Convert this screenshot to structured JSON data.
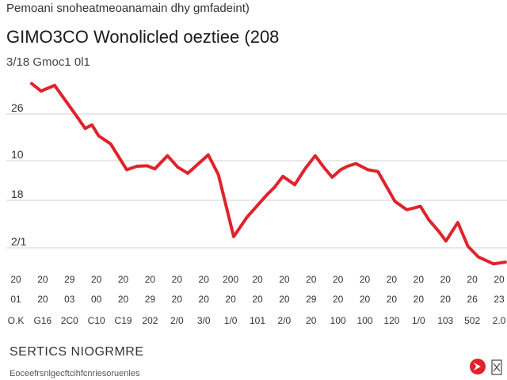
{
  "header": {
    "supertitle": "Pemoani snoheatmeoanamain dhy gmfadeint)",
    "title": "GIMO3CO Wonolicled oeztiee  (208",
    "subtitle": "3/18  Gmoc1 0l1"
  },
  "chart_data": {
    "type": "line",
    "title": "GIMO3CO Wonolicled oeztiee  (208",
    "xlabel": "",
    "ylabel": "",
    "y_tick_labels": [
      "26",
      "10",
      "18",
      "2/1"
    ],
    "x_tick_labels": [
      {
        "top": "20",
        "mid": "01",
        "bot": "O.K"
      },
      {
        "top": "20",
        "mid": "20",
        "bot": "G16"
      },
      {
        "top": "29",
        "mid": "03",
        "bot": "2C0"
      },
      {
        "top": "20",
        "mid": "00",
        "bot": "C10"
      },
      {
        "top": "20",
        "mid": "20",
        "bot": "C19"
      },
      {
        "top": "20",
        "mid": "29",
        "bot": "202"
      },
      {
        "top": "20",
        "mid": "20",
        "bot": "2/0"
      },
      {
        "top": "20",
        "mid": "20",
        "bot": "3/0"
      },
      {
        "top": "200",
        "mid": "20",
        "bot": "1/0"
      },
      {
        "top": "20",
        "mid": "20",
        "bot": "101"
      },
      {
        "top": "20",
        "mid": "20",
        "bot": "2/0"
      },
      {
        "top": "20",
        "mid": "29",
        "bot": "20"
      },
      {
        "top": "20",
        "mid": "20",
        "bot": "100"
      },
      {
        "top": "20",
        "mid": "20",
        "bot": "100"
      },
      {
        "top": "20",
        "mid": "20",
        "bot": "120"
      },
      {
        "top": "20",
        "mid": "20",
        "bot": "1/0"
      },
      {
        "top": "20",
        "mid": "20",
        "bot": "103"
      },
      {
        "top": "20",
        "mid": "26",
        "bot": "502"
      },
      {
        "top": "20",
        "mid": "23",
        "bot": "2.0"
      }
    ],
    "grid": true,
    "legend": "none",
    "series": [
      {
        "color": "#e0232b",
        "values": [
          {
            "x": 0.0,
            "y": 30.2
          },
          {
            "x": 0.55,
            "y": 28.5
          },
          {
            "x": 1.35,
            "y": 29.8
          },
          {
            "x": 2.7,
            "y": 22.5
          },
          {
            "x": 3.15,
            "y": 20.0
          },
          {
            "x": 3.55,
            "y": 20.8
          },
          {
            "x": 3.95,
            "y": 18.3
          },
          {
            "x": 4.65,
            "y": 16.5
          },
          {
            "x": 5.6,
            "y": 10.6
          },
          {
            "x": 6.2,
            "y": 11.4
          },
          {
            "x": 6.8,
            "y": 11.5
          },
          {
            "x": 7.25,
            "y": 10.8
          },
          {
            "x": 8.0,
            "y": 13.8
          },
          {
            "x": 8.6,
            "y": 11.2
          },
          {
            "x": 9.2,
            "y": 9.8
          },
          {
            "x": 10.4,
            "y": 14.0
          },
          {
            "x": 11.0,
            "y": 9.5
          },
          {
            "x": 11.9,
            "y": -4.6
          },
          {
            "x": 12.7,
            "y": -0.1
          },
          {
            "x": 13.9,
            "y": 5.1
          },
          {
            "x": 14.3,
            "y": 6.6
          },
          {
            "x": 14.8,
            "y": 9.1
          },
          {
            "x": 15.5,
            "y": 7.2
          },
          {
            "x": 16.1,
            "y": 10.8
          },
          {
            "x": 16.7,
            "y": 13.8
          },
          {
            "x": 17.2,
            "y": 11.2
          },
          {
            "x": 17.7,
            "y": 8.9
          },
          {
            "x": 18.2,
            "y": 10.6
          },
          {
            "x": 18.6,
            "y": 11.4
          },
          {
            "x": 19.1,
            "y": 12.0
          },
          {
            "x": 19.8,
            "y": 10.6
          },
          {
            "x": 20.4,
            "y": 10.2
          },
          {
            "x": 21.4,
            "y": 3.4
          },
          {
            "x": 22.1,
            "y": 1.5
          },
          {
            "x": 22.9,
            "y": 2.3
          },
          {
            "x": 23.4,
            "y": -0.8
          },
          {
            "x": 24.0,
            "y": -3.5
          },
          {
            "x": 24.4,
            "y": -5.6
          },
          {
            "x": 25.1,
            "y": -1.4
          },
          {
            "x": 25.7,
            "y": -6.8
          },
          {
            "x": 26.3,
            "y": -9.2
          },
          {
            "x": 27.2,
            "y": -10.8
          },
          {
            "x": 27.9,
            "y": -10.4
          }
        ]
      }
    ]
  },
  "footer": {
    "heading": "SERTICS NIOGRMRE",
    "note": "Eoceefrsnlgecftcihfcnriesoruenles",
    "logo_color": "#e0232b"
  }
}
